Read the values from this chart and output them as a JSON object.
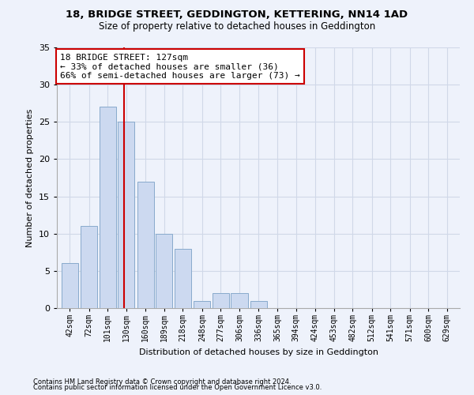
{
  "title": "18, BRIDGE STREET, GEDDINGTON, KETTERING, NN14 1AD",
  "subtitle": "Size of property relative to detached houses in Geddington",
  "xlabel": "Distribution of detached houses by size in Geddington",
  "ylabel": "Number of detached properties",
  "bin_labels": [
    "42sqm",
    "72sqm",
    "101sqm",
    "130sqm",
    "160sqm",
    "189sqm",
    "218sqm",
    "248sqm",
    "277sqm",
    "306sqm",
    "336sqm",
    "365sqm",
    "394sqm",
    "424sqm",
    "453sqm",
    "482sqm",
    "512sqm",
    "541sqm",
    "571sqm",
    "600sqm",
    "629sqm"
  ],
  "bar_values": [
    6,
    11,
    27,
    25,
    17,
    10,
    8,
    1,
    2,
    2,
    1,
    0,
    0,
    0,
    0,
    0,
    0,
    0,
    0,
    0,
    0
  ],
  "bar_color": "#ccd9f0",
  "bar_edgecolor": "#88aacc",
  "property_line_x": 127,
  "bin_edges": [
    42,
    72,
    101,
    130,
    160,
    189,
    218,
    248,
    277,
    306,
    336,
    365,
    394,
    424,
    453,
    482,
    512,
    541,
    571,
    600,
    629
  ],
  "annotation_text": "18 BRIDGE STREET: 127sqm\n← 33% of detached houses are smaller (36)\n66% of semi-detached houses are larger (73) →",
  "annotation_box_color": "#ffffff",
  "annotation_box_edgecolor": "#cc0000",
  "vline_color": "#cc0000",
  "grid_color": "#d0d8e8",
  "ylim": [
    0,
    35
  ],
  "yticks": [
    0,
    5,
    10,
    15,
    20,
    25,
    30,
    35
  ],
  "footer1": "Contains HM Land Registry data © Crown copyright and database right 2024.",
  "footer2": "Contains public sector information licensed under the Open Government Licence v3.0.",
  "background_color": "#eef2fb",
  "title_fontsize": 9.5,
  "subtitle_fontsize": 8.5,
  "annotation_fontsize": 8,
  "ylabel_fontsize": 8,
  "xlabel_fontsize": 8
}
